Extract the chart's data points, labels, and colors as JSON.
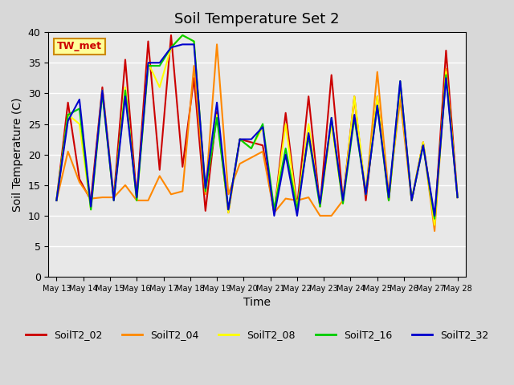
{
  "title": "Soil Temperature Set 2",
  "xlabel": "Time",
  "ylabel": "Soil Temperature (C)",
  "ylim": [
    0,
    40
  ],
  "yticks": [
    0,
    5,
    10,
    15,
    20,
    25,
    30,
    35,
    40
  ],
  "background_color": "#d8d8d8",
  "plot_bg_color": "#e8e8e8",
  "annotation_text": "TW_met",
  "annotation_bg": "#ffff99",
  "annotation_border": "#cc8800",
  "series_colors": {
    "SoilT2_02": "#cc0000",
    "SoilT2_04": "#ff8800",
    "SoilT2_08": "#ffff00",
    "SoilT2_16": "#00cc00",
    "SoilT2_32": "#0000cc"
  },
  "x_start": 13,
  "x_end": 28,
  "xtick_days": [
    13,
    14,
    15,
    16,
    17,
    18,
    19,
    20,
    21,
    22,
    23,
    24,
    25,
    26,
    27,
    28
  ],
  "SoilT2_02": [
    12.5,
    28.5,
    16.0,
    12.5,
    31.0,
    13.0,
    35.5,
    13.0,
    38.5,
    17.5,
    39.5,
    18.0,
    32.5,
    10.8,
    27.0,
    10.5,
    22.5,
    22.0,
    21.5,
    10.5,
    26.8,
    11.5,
    29.5,
    11.5,
    33.0,
    12.5,
    29.5,
    12.5,
    29.5,
    12.5,
    31.0,
    12.5,
    22.0,
    9.0,
    37.0,
    13.0
  ],
  "SoilT2_04": [
    12.5,
    20.5,
    15.5,
    12.8,
    13.0,
    13.0,
    15.0,
    12.5,
    12.5,
    16.5,
    13.5,
    14.0,
    34.5,
    13.5,
    38.0,
    13.5,
    18.5,
    19.5,
    20.5,
    10.5,
    12.8,
    12.5,
    13.0,
    10.0,
    10.0,
    12.5,
    29.0,
    13.5,
    33.5,
    13.5,
    29.0,
    12.5,
    22.0,
    7.5,
    34.0,
    13.0
  ],
  "SoilT2_08": [
    12.5,
    26.5,
    25.0,
    11.0,
    30.5,
    12.5,
    31.0,
    12.5,
    35.0,
    31.0,
    37.5,
    39.5,
    38.5,
    14.0,
    26.5,
    10.5,
    22.5,
    21.0,
    24.5,
    10.5,
    25.0,
    11.0,
    25.0,
    11.5,
    25.0,
    12.0,
    29.5,
    13.5,
    29.5,
    12.5,
    31.0,
    12.5,
    22.0,
    8.5,
    33.5,
    13.0
  ],
  "SoilT2_16": [
    12.5,
    26.5,
    27.5,
    11.0,
    30.0,
    12.5,
    30.5,
    12.5,
    34.5,
    34.5,
    37.5,
    39.5,
    38.5,
    14.0,
    26.0,
    11.0,
    22.5,
    21.0,
    25.0,
    11.0,
    21.0,
    11.0,
    23.0,
    11.5,
    26.0,
    12.0,
    26.0,
    13.5,
    28.0,
    12.5,
    32.0,
    12.5,
    21.5,
    9.5,
    33.0,
    13.0
  ],
  "SoilT2_32": [
    12.5,
    25.5,
    29.0,
    11.5,
    30.5,
    12.5,
    29.5,
    13.0,
    35.0,
    35.0,
    37.5,
    38.0,
    38.0,
    14.5,
    28.5,
    11.0,
    22.5,
    22.5,
    24.5,
    10.0,
    20.0,
    10.0,
    23.5,
    12.0,
    26.0,
    12.5,
    26.5,
    13.5,
    28.0,
    13.0,
    32.0,
    12.5,
    21.5,
    10.0,
    32.5,
    13.0
  ]
}
